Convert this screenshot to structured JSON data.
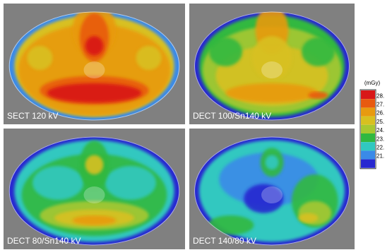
{
  "panels": [
    {
      "label": "SECT 120 kV"
    },
    {
      "label": "DECT 100/Sn140 kV"
    },
    {
      "label": "DECT 80/Sn140 kV"
    },
    {
      "label": "DECT 140/80 kV"
    }
  ],
  "colorbar": {
    "unit": "(mGy)",
    "ticks": [
      "28.",
      "27.",
      "26.",
      "25.",
      "24.",
      "23.",
      "22.",
      "21."
    ]
  }
}
